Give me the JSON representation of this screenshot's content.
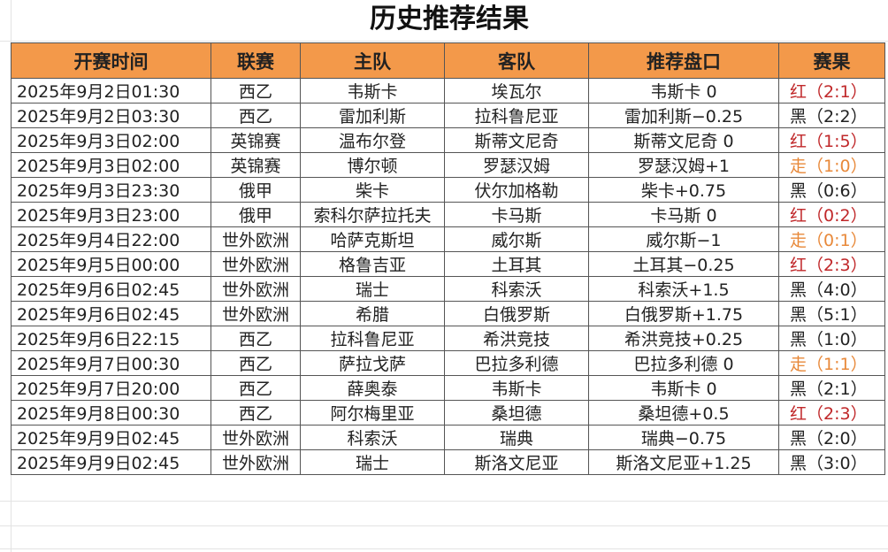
{
  "title": "历史推荐结果",
  "headers": [
    "开赛时间",
    "联赛",
    "主队",
    "客队",
    "推荐盘口",
    "赛果"
  ],
  "colors": {
    "header_bg": "#f3994a",
    "红": "#c0282a",
    "走": "#e8893a",
    "黑": "#222222"
  },
  "rows": [
    {
      "time": "2025年9月2日01:30",
      "league": "西乙",
      "home": "韦斯卡",
      "away": "埃瓦尔",
      "pick": "韦斯卡 0",
      "result": "红（2:1）",
      "status": "红"
    },
    {
      "time": "2025年9月2日03:30",
      "league": "西乙",
      "home": "雷加利斯",
      "away": "拉科鲁尼亚",
      "pick": "雷加利斯−0.25",
      "result": "黑（2:2）",
      "status": "黑"
    },
    {
      "time": "2025年9月3日02:00",
      "league": "英锦赛",
      "home": "温布尔登",
      "away": "斯蒂文尼奇",
      "pick": "斯蒂文尼奇 0",
      "result": "红（1:5）",
      "status": "红"
    },
    {
      "time": "2025年9月3日02:00",
      "league": "英锦赛",
      "home": "博尔顿",
      "away": "罗瑟汉姆",
      "pick": "罗瑟汉姆+1",
      "result": "走（1:0）",
      "status": "走"
    },
    {
      "time": "2025年9月3日23:30",
      "league": "俄甲",
      "home": "柴卡",
      "away": "伏尔加格勒",
      "pick": "柴卡+0.75",
      "result": "黑（0:6）",
      "status": "黑"
    },
    {
      "time": "2025年9月3日23:00",
      "league": "俄甲",
      "home": "索科尔萨拉托夫",
      "away": "卡马斯",
      "pick": "卡马斯 0",
      "result": "红（0:2）",
      "status": "红"
    },
    {
      "time": "2025年9月4日22:00",
      "league": "世外欧洲",
      "home": "哈萨克斯坦",
      "away": "威尔斯",
      "pick": "威尔斯−1",
      "result": "走（0:1）",
      "status": "走"
    },
    {
      "time": "2025年9月5日00:00",
      "league": "世外欧洲",
      "home": "格鲁吉亚",
      "away": "土耳其",
      "pick": "土耳其−0.25",
      "result": "红（2:3）",
      "status": "红"
    },
    {
      "time": "2025年9月6日02:45",
      "league": "世外欧洲",
      "home": "瑞士",
      "away": "科索沃",
      "pick": "科索沃+1.5",
      "result": "黑（4:0）",
      "status": "黑"
    },
    {
      "time": "2025年9月6日02:45",
      "league": "世外欧洲",
      "home": "希腊",
      "away": "白俄罗斯",
      "pick": "白俄罗斯+1.75",
      "result": "黑（5:1）",
      "status": "黑"
    },
    {
      "time": "2025年9月6日22:15",
      "league": "西乙",
      "home": "拉科鲁尼亚",
      "away": "希洪竞技",
      "pick": "希洪竞技+0.25",
      "result": "黑（1:0）",
      "status": "黑"
    },
    {
      "time": "2025年9月7日00:30",
      "league": "西乙",
      "home": "萨拉戈萨",
      "away": "巴拉多利德",
      "pick": "巴拉多利德 0",
      "result": "走（1:1）",
      "status": "走"
    },
    {
      "time": "2025年9月7日20:00",
      "league": "西乙",
      "home": "薛奥泰",
      "away": "韦斯卡",
      "pick": "韦斯卡 0",
      "result": "黑（2:1）",
      "status": "黑"
    },
    {
      "time": "2025年9月8日00:30",
      "league": "西乙",
      "home": "阿尔梅里亚",
      "away": "桑坦德",
      "pick": "桑坦德+0.5",
      "result": "红（2:3）",
      "status": "红"
    },
    {
      "time": "2025年9月9日02:45",
      "league": "世外欧洲",
      "home": "科索沃",
      "away": "瑞典",
      "pick": "瑞典−0.75",
      "result": "黑（2:0）",
      "status": "黑"
    },
    {
      "time": "2025年9月9日02:45",
      "league": "世外欧洲",
      "home": "瑞士",
      "away": "斯洛文尼亚",
      "pick": "斯洛文尼亚+1.25",
      "result": "黑（3:0）",
      "status": "黑"
    }
  ]
}
